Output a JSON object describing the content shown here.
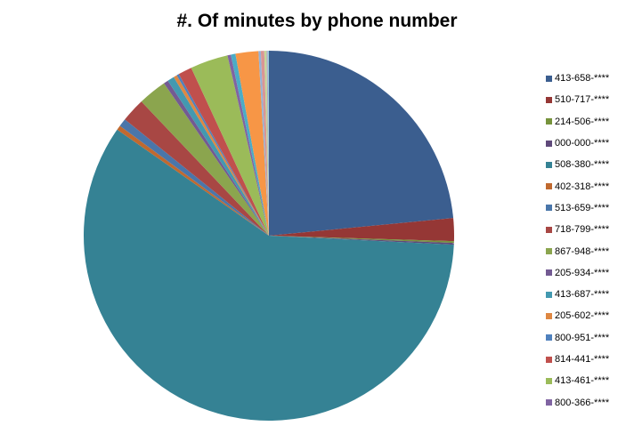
{
  "chart_data": {
    "type": "pie",
    "title": "#. Of minutes by phone number",
    "start_angle_deg": 0,
    "direction": "clockwise",
    "legend_position": "right",
    "slices": [
      {
        "name": "413-658-****",
        "value": 23.5,
        "color": "#3B5E8F"
      },
      {
        "name": "510-717-****",
        "value": 2.0,
        "color": "#953735"
      },
      {
        "name": "214-506-****",
        "value": 0.15,
        "color": "#77933C"
      },
      {
        "name": "000-000-****",
        "value": 0.15,
        "color": "#5F497A"
      },
      {
        "name": "508-380-****",
        "value": 59.0,
        "color": "#358294"
      },
      {
        "name": "402-318-****",
        "value": 0.4,
        "color": "#C0692F"
      },
      {
        "name": "513-659-****",
        "value": 0.7,
        "color": "#4A76AA"
      },
      {
        "name": "718-799-****",
        "value": 2.1,
        "color": "#A84744"
      },
      {
        "name": "867-948-****",
        "value": 2.5,
        "color": "#8BA54E"
      },
      {
        "name": "205-934-****",
        "value": 0.4,
        "color": "#735A92"
      },
      {
        "name": "413-687-****",
        "value": 0.6,
        "color": "#4399B0"
      },
      {
        "name": "205-602-****",
        "value": 0.3,
        "color": "#DE8742"
      },
      {
        "name": "800-951-****",
        "value": 0.2,
        "color": "#4F81BD"
      },
      {
        "name": "814-441-****",
        "value": 1.2,
        "color": "#C0504D"
      },
      {
        "name": "413-461-****",
        "value": 3.3,
        "color": "#9BBB59"
      },
      {
        "name": "800-366-****",
        "value": 0.3,
        "color": "#8064A2"
      },
      {
        "value": 0.4,
        "color": "#4BACC6"
      },
      {
        "value": 2.0,
        "color": "#F79646"
      },
      {
        "value": 0.2,
        "color": "#95B3D7"
      },
      {
        "value": 0.3,
        "color": "#D99694"
      },
      {
        "value": 0.2,
        "color": "#C3D69B"
      },
      {
        "value": 0.1,
        "color": "#B2A2C7"
      },
      {
        "value": 0.1,
        "color": "#93CDDD"
      }
    ]
  }
}
